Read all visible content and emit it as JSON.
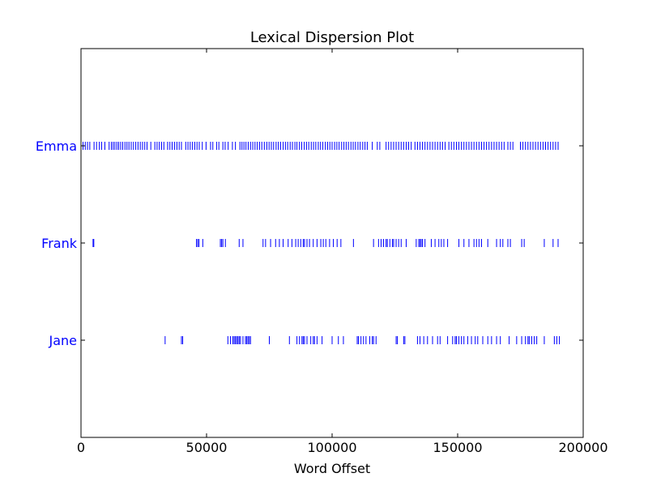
{
  "chart_data": {
    "type": "scatter",
    "title": "Lexical Dispersion Plot",
    "xlabel": "Word Offset",
    "ylabel": "",
    "xlim": [
      0,
      200000
    ],
    "grid": false,
    "mark_style": "vertical-tick",
    "colors": {
      "marks": "#0000ff",
      "tick_labels_y": "#0000ff",
      "frame": "#000000"
    },
    "xticks": [
      {
        "value": 0,
        "label": "0"
      },
      {
        "value": 50000,
        "label": "50000"
      },
      {
        "value": 100000,
        "label": "100000"
      },
      {
        "value": 150000,
        "label": "150000"
      },
      {
        "value": 200000,
        "label": "200000"
      }
    ],
    "categories": [
      "Emma",
      "Frank",
      "Jane"
    ],
    "series": [
      {
        "name": "Emma",
        "x": [
          0,
          800,
          1700,
          2600,
          3500,
          5200,
          6200,
          7300,
          8200,
          9500,
          11200,
          12100,
          12800,
          13500,
          14300,
          15000,
          15800,
          16600,
          17500,
          18300,
          19100,
          20000,
          20900,
          21800,
          22700,
          23600,
          24500,
          25400,
          26300,
          27800,
          29400,
          30300,
          31200,
          32100,
          33000,
          34500,
          35400,
          36300,
          37300,
          38200,
          39100,
          40000,
          41700,
          42600,
          43500,
          44400,
          45300,
          46200,
          47100,
          48300,
          49800,
          51600,
          52500,
          54000,
          54900,
          56500,
          57400,
          58600,
          60300,
          61500,
          63300,
          64100,
          64900,
          65700,
          66600,
          67500,
          68400,
          69300,
          70200,
          71100,
          72000,
          73000,
          74000,
          74900,
          75800,
          76700,
          77700,
          78600,
          79500,
          80500,
          81400,
          82300,
          83300,
          84200,
          85200,
          86000,
          87000,
          87900,
          88900,
          89800,
          90700,
          91700,
          92600,
          93500,
          94500,
          95400,
          96300,
          97300,
          98200,
          99100,
          100000,
          101000,
          101900,
          102800,
          103800,
          104700,
          105600,
          106500,
          107500,
          108400,
          109300,
          110300,
          111200,
          112200,
          113100,
          114000,
          116000,
          118000,
          119000,
          121500,
          122500,
          123500,
          124500,
          125500,
          126500,
          127500,
          128500,
          129500,
          130500,
          131500,
          133000,
          134000,
          135000,
          136000,
          137000,
          138000,
          139000,
          140000,
          141000,
          142000,
          143000,
          144000,
          145000,
          146500,
          147500,
          148500,
          149500,
          150500,
          151500,
          152500,
          153500,
          154500,
          155500,
          156500,
          157500,
          158500,
          159500,
          160500,
          161500,
          162500,
          163500,
          164500,
          165500,
          166500,
          167500,
          168500,
          170000,
          171000,
          172000,
          175000,
          176000,
          177000,
          178000,
          179000,
          180000,
          181000,
          182000,
          183000,
          184000,
          185000,
          186000,
          187000,
          188000,
          189000,
          190000
        ]
      },
      {
        "name": "Frank",
        "x": [
          4800,
          5100,
          46000,
          46500,
          47000,
          48500,
          55500,
          56000,
          56500,
          57500,
          63000,
          64500,
          72500,
          73500,
          75500,
          77500,
          79000,
          80500,
          82500,
          84000,
          85500,
          86500,
          87500,
          88500,
          89000,
          90000,
          91000,
          92500,
          94000,
          95500,
          96500,
          97500,
          99000,
          100500,
          102000,
          103500,
          108500,
          116500,
          118500,
          119500,
          120500,
          121500,
          122000,
          123000,
          124000,
          124500,
          125500,
          126500,
          127500,
          129500,
          133500,
          134500,
          135000,
          135500,
          136000,
          137000,
          139500,
          141000,
          142500,
          143500,
          144500,
          146000,
          150500,
          152500,
          154500,
          156500,
          157500,
          158500,
          159500,
          162000,
          165500,
          167000,
          168000,
          170000,
          171000,
          175500,
          176500,
          184500,
          188000,
          190000
        ]
      },
      {
        "name": "Jane",
        "x": [
          33500,
          40000,
          40500,
          58500,
          59500,
          60500,
          61000,
          61500,
          62000,
          62500,
          63000,
          63500,
          64500,
          65500,
          66000,
          66500,
          67000,
          67500,
          75000,
          83000,
          86000,
          87000,
          88000,
          88500,
          89000,
          90000,
          91500,
          92500,
          93000,
          94000,
          96000,
          100000,
          102500,
          104500,
          110000,
          110500,
          111500,
          112500,
          113500,
          115000,
          116000,
          116500,
          117500,
          125500,
          126000,
          128500,
          129000,
          134000,
          135000,
          136500,
          138000,
          140000,
          142000,
          143000,
          146000,
          148000,
          149000,
          149500,
          150500,
          151500,
          152500,
          154000,
          155500,
          157000,
          158000,
          160000,
          162000,
          163500,
          165500,
          167000,
          170500,
          173500,
          175500,
          177000,
          178000,
          178500,
          179500,
          180500,
          181500,
          184500,
          188500,
          189500,
          190500
        ]
      }
    ]
  }
}
